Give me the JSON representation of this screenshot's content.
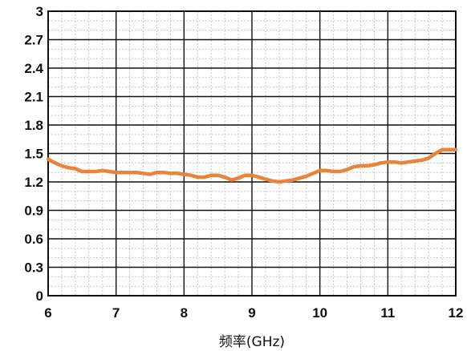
{
  "chart_data": {
    "type": "line",
    "title": "",
    "xlabel": "频率(GHz)",
    "ylabel": "",
    "xlim": [
      6,
      12
    ],
    "ylim": [
      0,
      3
    ],
    "xticks": [
      "6",
      "7",
      "8",
      "9",
      "10",
      "11",
      "12"
    ],
    "yticks": [
      "0",
      "0.3",
      "0.6",
      "0.9",
      "1.2",
      "1.5",
      "1.8",
      "2.1",
      "2.4",
      "2.7",
      "3"
    ],
    "grid": true,
    "legend": "none",
    "line_color": "#e8843c",
    "series": [
      {
        "x": [
          6.0,
          6.1,
          6.2,
          6.3,
          6.4,
          6.5,
          6.6,
          6.7,
          6.8,
          6.9,
          7.0,
          7.1,
          7.2,
          7.3,
          7.4,
          7.5,
          7.6,
          7.7,
          7.8,
          7.9,
          8.0,
          8.1,
          8.2,
          8.3,
          8.4,
          8.5,
          8.6,
          8.7,
          8.8,
          8.9,
          9.0,
          9.1,
          9.2,
          9.3,
          9.4,
          9.5,
          9.6,
          9.7,
          9.8,
          9.9,
          10.0,
          10.1,
          10.2,
          10.3,
          10.4,
          10.5,
          10.6,
          10.7,
          10.8,
          10.9,
          11.0,
          11.1,
          11.2,
          11.3,
          11.4,
          11.5,
          11.6,
          11.7,
          11.8,
          11.9,
          12.0
        ],
        "y": [
          1.44,
          1.4,
          1.37,
          1.35,
          1.34,
          1.31,
          1.31,
          1.31,
          1.32,
          1.31,
          1.3,
          1.3,
          1.3,
          1.3,
          1.29,
          1.28,
          1.3,
          1.3,
          1.29,
          1.29,
          1.28,
          1.27,
          1.25,
          1.25,
          1.27,
          1.27,
          1.25,
          1.22,
          1.24,
          1.27,
          1.27,
          1.25,
          1.23,
          1.21,
          1.2,
          1.21,
          1.22,
          1.24,
          1.26,
          1.29,
          1.32,
          1.32,
          1.31,
          1.31,
          1.33,
          1.36,
          1.37,
          1.37,
          1.38,
          1.4,
          1.41,
          1.41,
          1.4,
          1.41,
          1.42,
          1.43,
          1.45,
          1.5,
          1.54,
          1.54,
          1.54
        ]
      }
    ]
  }
}
